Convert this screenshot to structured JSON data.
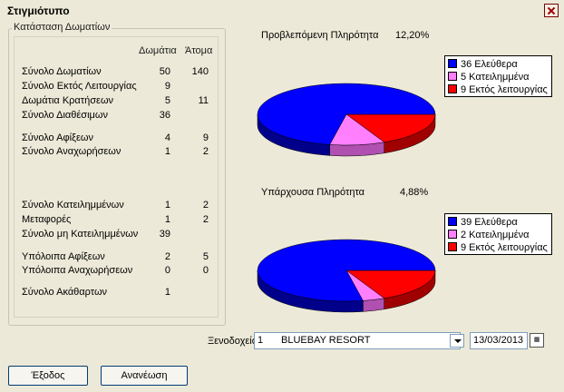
{
  "window": {
    "title": "Στιγμιότυπο"
  },
  "room_status": {
    "group_title": "Κατάσταση Δωματίων",
    "col_rooms": "Δωμάτια",
    "col_persons": "Άτομα",
    "rows": [
      {
        "label": "Σύνολο Δωματίων",
        "rooms": "50",
        "persons": "140"
      },
      {
        "label": "Σύνολο Εκτός Λειτουργίας",
        "rooms": "9",
        "persons": ""
      },
      {
        "label": "Δωμάτια Κρατήσεων",
        "rooms": "5",
        "persons": "11"
      },
      {
        "label": "Σύνολο Διαθέσιμων",
        "rooms": "36",
        "persons": ""
      },
      {
        "label": "Σύνολο Αφίξεων",
        "rooms": "4",
        "persons": "9"
      },
      {
        "label": "Σύνολο Αναχωρήσεων",
        "rooms": "1",
        "persons": "2"
      },
      {
        "label": "Σύνολο Κατειλημμένων",
        "rooms": "1",
        "persons": "2"
      },
      {
        "label": "Μεταφορές",
        "rooms": "1",
        "persons": "2"
      },
      {
        "label": "Σύνολο μη Κατειλημμένων",
        "rooms": "39",
        "persons": ""
      },
      {
        "label": "Υπόλοιπα Αφίξεων",
        "rooms": "2",
        "persons": "5"
      },
      {
        "label": "Υπόλοιπα Αναχωρήσεων",
        "rooms": "0",
        "persons": "0"
      },
      {
        "label": "Σύνολο Ακάθαρτων",
        "rooms": "1",
        "persons": ""
      }
    ]
  },
  "predicted": {
    "label": "Προβλεπόμενη Πληρότητα",
    "value": "12,20%"
  },
  "current": {
    "label": "Υπάρχουσα Πληρότητα",
    "value": "4,88%"
  },
  "chart_data": [
    {
      "type": "pie",
      "title": "",
      "categories": [
        "Ελεύθερα",
        "Κατειλημμένα",
        "Εκτός λειτουργίας"
      ],
      "values": [
        36,
        5,
        9
      ],
      "legend": [
        "36 Ελεύθερα",
        "5 Κατειλημμένα",
        "9 Εκτός λειτουργίας"
      ],
      "colors": [
        "#0000ff",
        "#ff7fff",
        "#ff0000"
      ],
      "legend_position": "top-right"
    },
    {
      "type": "pie",
      "title": "",
      "categories": [
        "Ελεύθερα",
        "Κατειλημμένα",
        "Εκτός λειτουργίας"
      ],
      "values": [
        39,
        2,
        9
      ],
      "legend": [
        "39 Ελεύθερα",
        "2 Κατειλημμένα",
        "9 Εκτός λειτουργίας"
      ],
      "colors": [
        "#0000ff",
        "#ff7fff",
        "#ff0000"
      ],
      "legend_position": "top-right"
    }
  ],
  "hotel": {
    "label": "Ξενοδοχείο",
    "code": "1",
    "name": "BLUEBAY RESORT",
    "date": "13/03/2013"
  },
  "buttons": {
    "exit": "Έξοδος",
    "refresh": "Ανανέωση"
  },
  "icons": {
    "close": "close-icon",
    "dropdown": "chevron-down-icon",
    "calendar": "calendar-icon"
  }
}
